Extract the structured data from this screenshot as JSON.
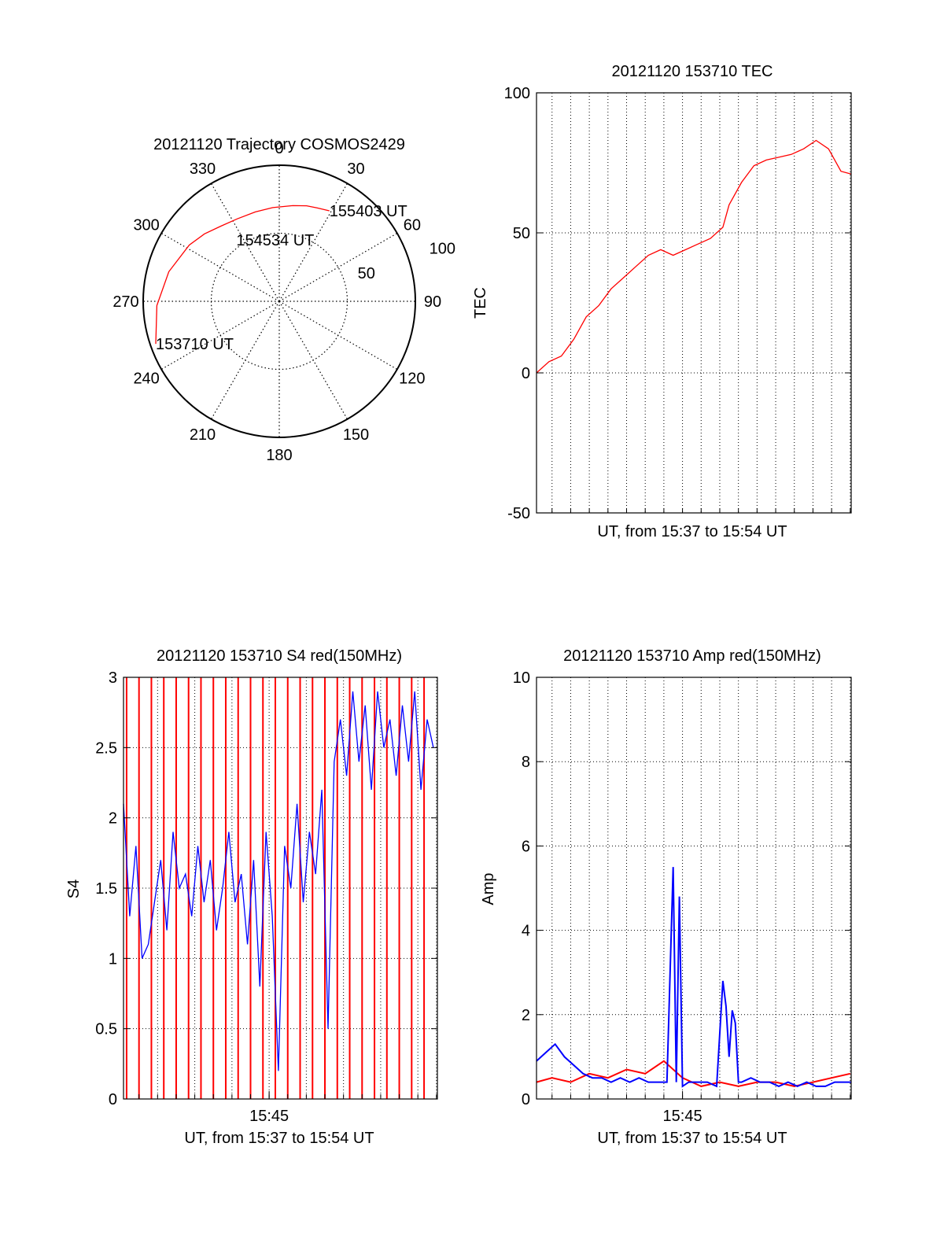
{
  "chart_data": [
    {
      "type": "polar",
      "title": "20121120 Trajectory COSMOS2429",
      "azimuth_labels": [
        "0",
        "30",
        "60",
        "90",
        "120",
        "150",
        "180",
        "210",
        "240",
        "270",
        "300",
        "330"
      ],
      "radial_ticks": [
        50,
        100
      ],
      "radial_tick_labels": [
        "50",
        "100"
      ],
      "rlim": [
        0,
        100
      ],
      "grid": true,
      "trajectory": {
        "color": "#ff0000",
        "points": [
          {
            "az": 251,
            "r": 96
          },
          {
            "az": 268,
            "r": 90
          },
          {
            "az": 285,
            "r": 84
          },
          {
            "az": 302,
            "r": 78
          },
          {
            "az": 312,
            "r": 74
          },
          {
            "az": 322,
            "r": 70
          },
          {
            "az": 333,
            "r": 68
          },
          {
            "az": 345,
            "r": 68
          },
          {
            "az": 356,
            "r": 69
          },
          {
            "az": 8,
            "r": 71
          },
          {
            "az": 16,
            "r": 73
          },
          {
            "az": 22,
            "r": 74
          },
          {
            "az": 29,
            "r": 76
          }
        ]
      },
      "annotations": [
        {
          "text": "155403 UT",
          "az": 29,
          "r": 76
        },
        {
          "text": "154534 UT",
          "az": 325,
          "r": 55
        },
        {
          "text": "153710 UT",
          "az": 251,
          "r": 96
        }
      ]
    },
    {
      "type": "line",
      "title": "20121120 153710 TEC",
      "xlabel": "UT, from 15:37 to 15:54 UT",
      "ylabel": "TEC",
      "xlim": [
        "15:37:10",
        "15:54:03"
      ],
      "ylim": [
        -50,
        100
      ],
      "yticks": [
        -50,
        0,
        50,
        100
      ],
      "ytick_labels": [
        "-50",
        "0",
        "50",
        "100"
      ],
      "grid": true,
      "series": [
        {
          "color": "#ff0000",
          "x": [
            "15:37:10",
            "15:37:50",
            "15:38:30",
            "15:39:10",
            "15:39:50",
            "15:40:30",
            "15:41:10",
            "15:41:50",
            "15:42:30",
            "15:43:10",
            "15:43:50",
            "15:44:30",
            "15:45:10",
            "15:45:50",
            "15:46:30",
            "15:47:10",
            "15:47:30",
            "15:48:10",
            "15:48:50",
            "15:49:30",
            "15:50:10",
            "15:50:50",
            "15:51:30",
            "15:52:10",
            "15:52:50",
            "15:53:30",
            "15:54:03"
          ],
          "y": [
            0,
            4,
            6,
            12,
            20,
            24,
            30,
            34,
            38,
            42,
            44,
            42,
            44,
            46,
            48,
            52,
            60,
            68,
            74,
            76,
            77,
            78,
            80,
            83,
            80,
            72,
            71
          ]
        }
      ]
    },
    {
      "type": "line",
      "title": "20121120 153710 S4 red(150MHz)",
      "xlabel": "UT, from 15:37 to 15:54 UT",
      "ylabel": "S4",
      "xlim": [
        "15:37:10",
        "15:54:03"
      ],
      "ylim": [
        0,
        3
      ],
      "yticks": [
        0,
        0.5,
        1,
        1.5,
        2,
        2.5,
        3
      ],
      "ytick_labels": [
        "0",
        "0.5",
        "1",
        "1.5",
        "2",
        "2.5",
        "3"
      ],
      "xticks": [
        "15:45"
      ],
      "xtick_labels": [
        "15:45"
      ],
      "grid": true,
      "series": [
        {
          "color": "#ff0000",
          "style": "spikes",
          "x": [
            "15:37:20",
            "15:37:40",
            "15:38:00",
            "15:38:20",
            "15:38:40",
            "15:39:00",
            "15:39:20",
            "15:39:40",
            "15:40:00",
            "15:40:20",
            "15:40:40",
            "15:41:00",
            "15:41:20",
            "15:41:40",
            "15:42:00",
            "15:42:20",
            "15:42:40",
            "15:43:00",
            "15:43:20",
            "15:43:40",
            "15:44:00",
            "15:44:20",
            "15:44:40",
            "15:45:00",
            "15:45:20",
            "15:45:40",
            "15:46:00",
            "15:46:20",
            "15:46:40",
            "15:47:00",
            "15:47:20",
            "15:47:40",
            "15:48:00",
            "15:48:20",
            "15:48:40",
            "15:49:00",
            "15:49:20",
            "15:49:40",
            "15:50:00",
            "15:50:20",
            "15:50:40",
            "15:51:00",
            "15:51:20",
            "15:51:40",
            "15:52:00",
            "15:52:20",
            "15:52:40",
            "15:53:00",
            "15:53:20",
            "15:53:40"
          ],
          "y": [
            3,
            0,
            3,
            0,
            3,
            0,
            3,
            0,
            3,
            0,
            3,
            0,
            3,
            0,
            3,
            0,
            3,
            0,
            3,
            0,
            3,
            0,
            3,
            0,
            3,
            0,
            3,
            0,
            3,
            0,
            3,
            0,
            3,
            0,
            3,
            0,
            3,
            0,
            3,
            0,
            3,
            0,
            3,
            0,
            3,
            0,
            3,
            0,
            3,
            0
          ]
        },
        {
          "color": "#0000ff",
          "x": [
            "15:37:10",
            "15:37:30",
            "15:37:50",
            "15:38:10",
            "15:38:30",
            "15:38:50",
            "15:39:10",
            "15:39:30",
            "15:39:50",
            "15:40:10",
            "15:40:30",
            "15:40:50",
            "15:41:10",
            "15:41:30",
            "15:41:50",
            "15:42:10",
            "15:42:30",
            "15:42:50",
            "15:43:10",
            "15:43:30",
            "15:43:50",
            "15:44:10",
            "15:44:30",
            "15:44:50",
            "15:45:10",
            "15:45:30",
            "15:45:50",
            "15:46:10",
            "15:46:30",
            "15:46:50",
            "15:47:10",
            "15:47:30",
            "15:47:50",
            "15:48:10",
            "15:48:30",
            "15:48:50",
            "15:49:10",
            "15:49:30",
            "15:49:50",
            "15:50:10",
            "15:50:30",
            "15:50:50",
            "15:51:10",
            "15:51:30",
            "15:51:50",
            "15:52:10",
            "15:52:30",
            "15:52:50",
            "15:53:10",
            "15:53:30",
            "15:53:50"
          ],
          "y": [
            2.1,
            1.3,
            1.8,
            1.0,
            1.1,
            1.4,
            1.7,
            1.2,
            1.9,
            1.5,
            1.6,
            1.3,
            1.8,
            1.4,
            1.7,
            1.2,
            1.5,
            1.9,
            1.4,
            1.6,
            1.1,
            1.7,
            0.8,
            1.9,
            1.3,
            0.2,
            1.8,
            1.5,
            2.1,
            1.4,
            1.9,
            1.6,
            2.2,
            0.5,
            2.4,
            2.7,
            2.3,
            2.9,
            2.4,
            2.8,
            2.2,
            2.9,
            2.5,
            2.7,
            2.3,
            2.8,
            2.4,
            2.9,
            2.2,
            2.7,
            2.5
          ]
        }
      ]
    },
    {
      "type": "line",
      "title": "20121120 153710 Amp red(150MHz)",
      "xlabel": "UT, from 15:37 to 15:54 UT",
      "ylabel": "Amp",
      "xlim": [
        "15:37:10",
        "15:54:03"
      ],
      "ylim": [
        0,
        10
      ],
      "yticks": [
        0,
        2,
        4,
        6,
        8,
        10
      ],
      "ytick_labels": [
        "0",
        "2",
        "4",
        "6",
        "8",
        "10"
      ],
      "xticks": [
        "15:45"
      ],
      "xtick_labels": [
        "15:45"
      ],
      "grid": true,
      "series": [
        {
          "color": "#ff0000",
          "x": [
            "15:37:10",
            "15:38:00",
            "15:39:00",
            "15:40:00",
            "15:41:00",
            "15:42:00",
            "15:43:00",
            "15:44:00",
            "15:45:00",
            "15:46:00",
            "15:47:00",
            "15:48:00",
            "15:49:00",
            "15:50:00",
            "15:51:00",
            "15:52:00",
            "15:53:00",
            "15:54:00"
          ],
          "y": [
            0.4,
            0.5,
            0.4,
            0.6,
            0.5,
            0.7,
            0.6,
            0.9,
            0.5,
            0.3,
            0.4,
            0.3,
            0.4,
            0.4,
            0.3,
            0.4,
            0.5,
            0.6
          ]
        },
        {
          "color": "#0000ff",
          "x": [
            "15:37:10",
            "15:37:40",
            "15:38:10",
            "15:38:40",
            "15:39:10",
            "15:39:40",
            "15:40:10",
            "15:40:40",
            "15:41:10",
            "15:41:40",
            "15:42:10",
            "15:42:40",
            "15:43:10",
            "15:43:40",
            "15:44:10",
            "15:44:30",
            "15:44:40",
            "15:44:50",
            "15:45:00",
            "15:45:20",
            "15:45:50",
            "15:46:20",
            "15:46:50",
            "15:47:10",
            "15:47:20",
            "15:47:30",
            "15:47:40",
            "15:47:50",
            "15:48:00",
            "15:48:10",
            "15:48:40",
            "15:49:10",
            "15:49:40",
            "15:50:10",
            "15:50:40",
            "15:51:10",
            "15:51:40",
            "15:52:10",
            "15:52:40",
            "15:53:10",
            "15:53:40",
            "15:54:03"
          ],
          "y": [
            0.9,
            1.1,
            1.3,
            1.0,
            0.8,
            0.6,
            0.5,
            0.5,
            0.4,
            0.5,
            0.4,
            0.5,
            0.4,
            0.4,
            0.4,
            5.5,
            0.4,
            4.8,
            0.3,
            0.4,
            0.4,
            0.4,
            0.3,
            2.8,
            2.2,
            1.0,
            2.1,
            1.8,
            0.4,
            0.4,
            0.5,
            0.4,
            0.4,
            0.3,
            0.4,
            0.3,
            0.4,
            0.3,
            0.3,
            0.4,
            0.4,
            0.4
          ]
        }
      ]
    }
  ]
}
